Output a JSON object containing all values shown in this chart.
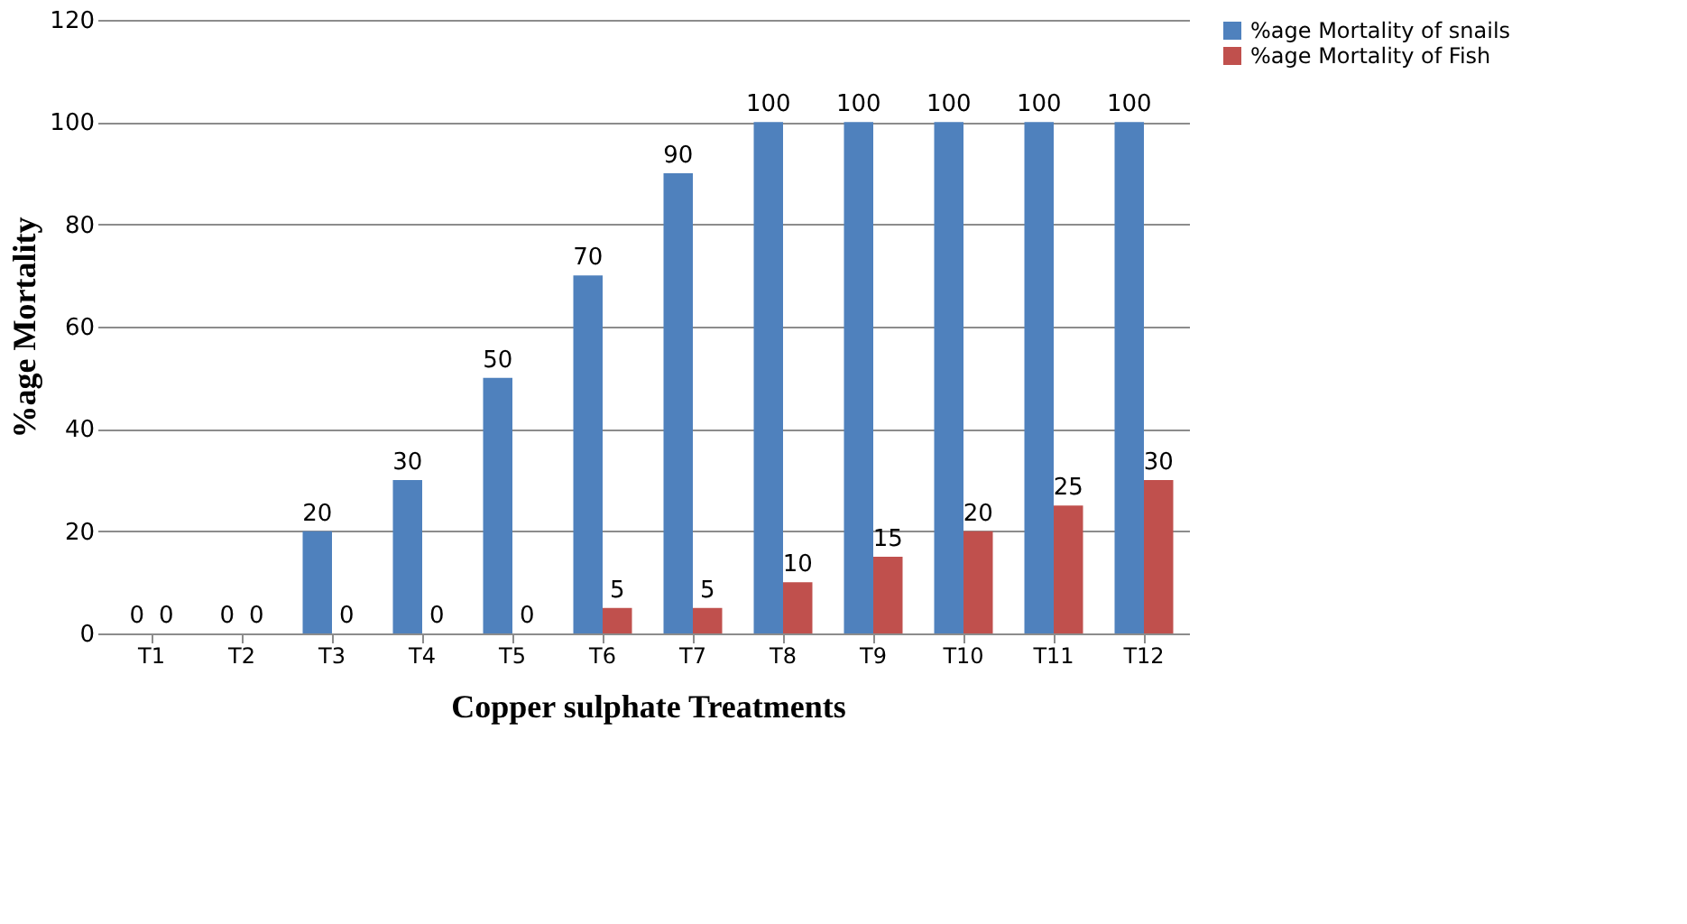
{
  "chart_data": {
    "type": "bar",
    "xlabel": "Copper sulphate Treatments",
    "ylabel": "%age Mortality",
    "categories": [
      "T1",
      "T2",
      "T3",
      "T4",
      "T5",
      "T6",
      "T7",
      "T8",
      "T9",
      "T10",
      "T11",
      "T12"
    ],
    "series": [
      {
        "name": "%age Mortality of snails",
        "color": "#4f81bd",
        "values": [
          0,
          0,
          20,
          30,
          50,
          70,
          90,
          100,
          100,
          100,
          100,
          100
        ]
      },
      {
        "name": "%age Mortality of Fish",
        "color": "#c0504d",
        "values": [
          0,
          0,
          0,
          0,
          0,
          5,
          5,
          10,
          15,
          20,
          25,
          30
        ]
      }
    ],
    "ylim": [
      0,
      120
    ],
    "yticks": [
      0,
      20,
      40,
      60,
      80,
      100,
      120
    ],
    "grid": "y",
    "legend": "right",
    "data_labels": true
  }
}
